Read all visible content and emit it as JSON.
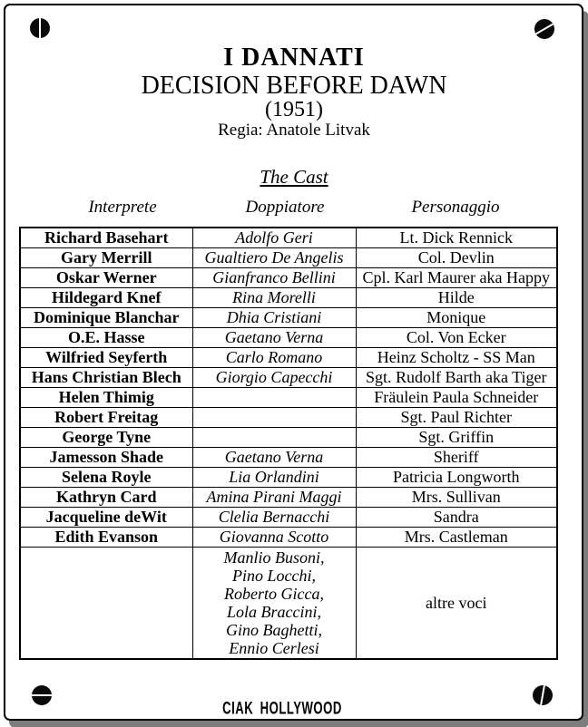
{
  "header": {
    "title_italian": "I DANNATI",
    "title_english": "DECISION BEFORE DAWN",
    "year": "(1951)",
    "director": "Regia: Anatole Litvak",
    "cast_heading": "The Cast"
  },
  "table": {
    "columns": [
      "Interprete",
      "Doppiatore",
      "Personaggio"
    ],
    "rows": [
      {
        "interprete": "Richard Basehart",
        "doppiatore": "Adolfo Geri",
        "personaggio": "Lt. Dick Rennick"
      },
      {
        "interprete": "Gary Merrill",
        "doppiatore": "Gualtiero De Angelis",
        "personaggio": "Col. Devlin"
      },
      {
        "interprete": "Oskar Werner",
        "doppiatore": "Gianfranco Bellini",
        "personaggio": "Cpl. Karl Maurer aka Happy"
      },
      {
        "interprete": "Hildegard Knef",
        "doppiatore": "Rina Morelli",
        "personaggio": "Hilde"
      },
      {
        "interprete": "Dominique Blanchar",
        "doppiatore": "Dhia Cristiani",
        "personaggio": "Monique"
      },
      {
        "interprete": "O.E. Hasse",
        "doppiatore": "Gaetano Verna",
        "personaggio": "Col. Von Ecker"
      },
      {
        "interprete": "Wilfried Seyferth",
        "doppiatore": "Carlo Romano",
        "personaggio": "Heinz Scholtz - SS Man"
      },
      {
        "interprete": "Hans Christian Blech",
        "doppiatore": "Giorgio Capecchi",
        "personaggio": "Sgt. Rudolf Barth aka Tiger"
      },
      {
        "interprete": "Helen Thimig",
        "doppiatore": "",
        "personaggio": "Fräulein Paula Schneider"
      },
      {
        "interprete": "Robert Freitag",
        "doppiatore": "",
        "personaggio": "Sgt. Paul Richter"
      },
      {
        "interprete": "George Tyne",
        "doppiatore": "",
        "personaggio": "Sgt. Griffin"
      },
      {
        "interprete": "Jamesson Shade",
        "doppiatore": "Gaetano Verna",
        "personaggio": "Sheriff"
      },
      {
        "interprete": "Selena Royle",
        "doppiatore": "Lia Orlandini",
        "personaggio": "Patricia Longworth"
      },
      {
        "interprete": "Kathryn Card",
        "doppiatore": "Amina Pirani Maggi",
        "personaggio": "Mrs. Sullivan"
      },
      {
        "interprete": "Jacqueline deWit",
        "doppiatore": "Clelia Bernacchi",
        "personaggio": "Sandra"
      },
      {
        "interprete": "Edith Evanson",
        "doppiatore": "Giovanna Scotto",
        "personaggio": "Mrs. Castleman"
      },
      {
        "interprete": "",
        "doppiatore": "Manlio Busoni,\nPino Locchi,\nRoberto Gicca,\nLola Braccini,\nGino Baghetti,\nEnnio Cerlesi",
        "personaggio": "altre voci"
      }
    ]
  },
  "footer": {
    "logo_text": "CIAK HOLLYWOOD"
  },
  "decorations": {
    "screw_icons": {
      "top_left": "screw-vertical-slot",
      "top_right": "screw-diagonal-slot",
      "bottom_left": "screw-horizontal-slot",
      "bottom_right": "screw-tilted-slot"
    },
    "colors": {
      "text": "#000000",
      "background": "#ffffff",
      "border": "#000000",
      "shadow": "#7d7d7d"
    }
  }
}
